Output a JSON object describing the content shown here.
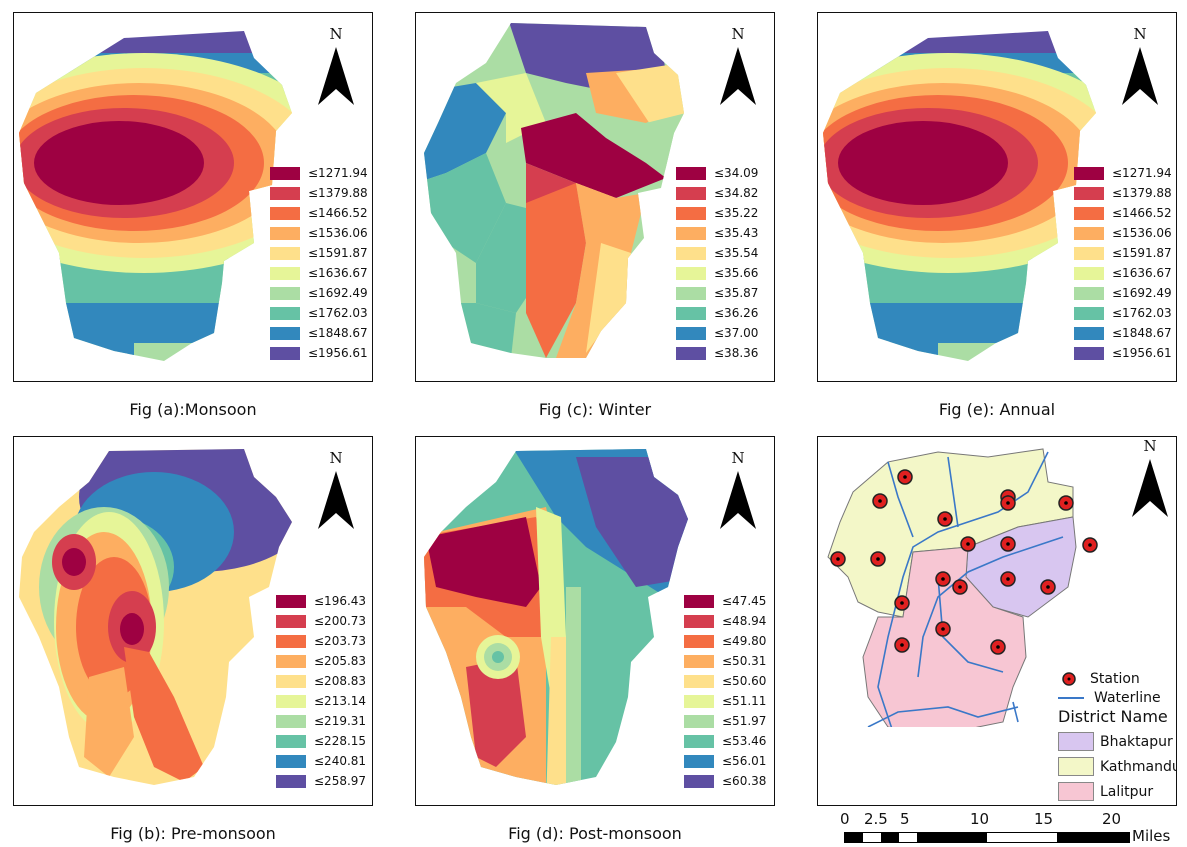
{
  "north_label": "N",
  "colors": [
    "#9e0142",
    "#d53e4f",
    "#f46d43",
    "#fdae61",
    "#fee08b",
    "#e6f598",
    "#abdda4",
    "#66c2a5",
    "#3288bd",
    "#5e4fa2"
  ],
  "panels": [
    {
      "id": "a",
      "caption": "Fig (a):Monsoon",
      "breaks": [
        "≤1271.94",
        "≤1379.88",
        "≤1466.52",
        "≤1536.06",
        "≤1591.87",
        "≤1636.67",
        "≤1692.49",
        "≤1762.03",
        "≤1848.67",
        "≤1956.61"
      ]
    },
    {
      "id": "b",
      "caption": "Fig (b): Pre-monsoon",
      "breaks": [
        "≤196.43",
        "≤200.73",
        "≤203.73",
        "≤205.83",
        "≤208.83",
        "≤213.14",
        "≤219.31",
        "≤228.15",
        "≤240.81",
        "≤258.97"
      ]
    },
    {
      "id": "c",
      "caption": "Fig (c): Winter",
      "breaks": [
        "≤34.09",
        "≤34.82",
        "≤35.22",
        "≤35.43",
        "≤35.54",
        "≤35.66",
        "≤35.87",
        "≤36.26",
        "≤37.00",
        "≤38.36"
      ]
    },
    {
      "id": "d",
      "caption": "Fig (d): Post-monsoon",
      "breaks": [
        "≤47.45",
        "≤48.94",
        "≤49.80",
        "≤50.31",
        "≤50.60",
        "≤51.11",
        "≤51.97",
        "≤53.46",
        "≤56.01",
        "≤60.38"
      ]
    },
    {
      "id": "e",
      "caption": "Fig (e): Annual",
      "breaks": [
        "≤1271.94",
        "≤1379.88",
        "≤1466.52",
        "≤1536.06",
        "≤1591.87",
        "≤1636.67",
        "≤1692.49",
        "≤1762.03",
        "≤1848.67",
        "≤1956.61"
      ]
    }
  ],
  "district_map": {
    "legend": {
      "station": "Station",
      "waterline": "Waterline",
      "title": "District Name",
      "districts": [
        {
          "name": "Bhaktapur",
          "color": "#d8c6f0"
        },
        {
          "name": "Kathmandu",
          "color": "#f3f7c8"
        },
        {
          "name": "Lalitpur",
          "color": "#f7c6d3"
        }
      ]
    },
    "scale": {
      "ticks": [
        "0",
        "2.5",
        "5",
        "10",
        "15",
        "20"
      ],
      "unit": "Miles"
    }
  }
}
